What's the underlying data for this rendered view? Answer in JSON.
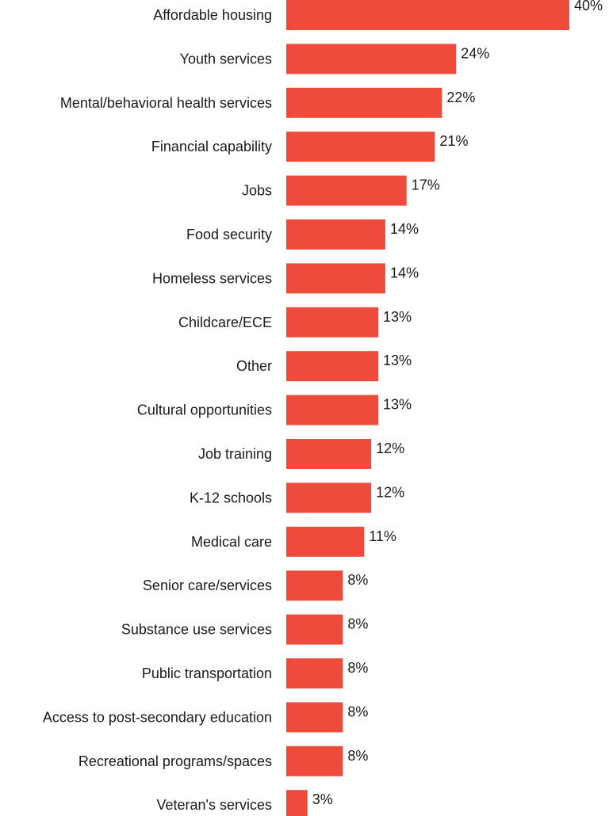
{
  "chart_data": {
    "type": "bar",
    "orientation": "horizontal",
    "categories": [
      "Affordable housing",
      "Youth services",
      "Mental/behavioral health services",
      "Financial capability",
      "Jobs",
      "Food security",
      "Homeless services",
      "Childcare/ECE",
      "Other",
      "Cultural opportunities",
      "Job training",
      "K-12 schools",
      "Medical care",
      "Senior care/services",
      "Substance use services",
      "Public transportation",
      "Access to post-secondary education",
      "Recreational programs/spaces",
      "Veteran's services"
    ],
    "values": [
      40,
      24,
      22,
      21,
      17,
      14,
      14,
      13,
      13,
      13,
      12,
      12,
      11,
      8,
      8,
      8,
      8,
      8,
      3
    ],
    "value_labels": [
      "40%",
      "24%",
      "22%",
      "21%",
      "17%",
      "14%",
      "14%",
      "13%",
      "13%",
      "13%",
      "12%",
      "12%",
      "11%",
      "8%",
      "8%",
      "8%",
      "8%",
      "8%",
      "3%"
    ],
    "unit": "%",
    "xlim": [
      0,
      40
    ],
    "grid": false,
    "legend": "none",
    "bar_color": "#ef4b3c"
  }
}
